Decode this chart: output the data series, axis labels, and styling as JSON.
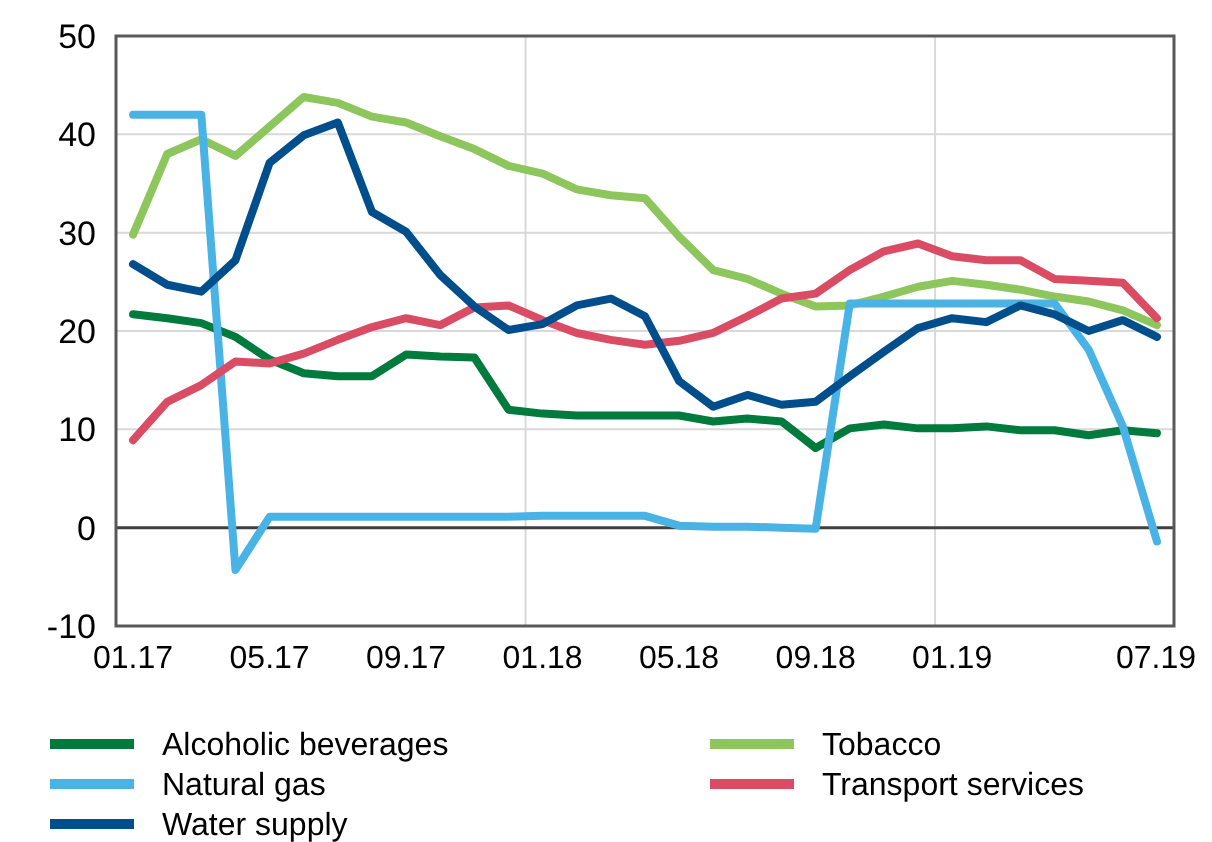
{
  "chart_data": {
    "type": "line",
    "categories": [
      "01.17",
      null,
      null,
      null,
      "05.17",
      null,
      null,
      null,
      "09.17",
      null,
      null,
      null,
      "01.18",
      null,
      null,
      null,
      "05.18",
      null,
      null,
      null,
      "09.18",
      null,
      null,
      null,
      "01.19",
      null,
      null,
      null,
      null,
      null,
      "07.19"
    ],
    "series": [
      {
        "name": "Alcoholic beverages",
        "color": "#007a3d",
        "values": [
          21.7,
          21.3,
          20.8,
          19.4,
          17.1,
          15.7,
          15.4,
          15.4,
          17.6,
          17.4,
          17.3,
          12,
          11.6,
          11.4,
          11.4,
          11.4,
          11.4,
          10.8,
          11.1,
          10.8,
          8.1,
          10.1,
          10.5,
          10.1,
          10.1,
          10.3,
          9.9,
          9.9,
          9.4,
          9.9,
          9.6
        ]
      },
      {
        "name": "Tobacco",
        "color": "#8cc65c",
        "values": [
          29.8,
          38,
          39.5,
          37.8,
          40.8,
          43.8,
          43.2,
          41.8,
          41.2,
          39.8,
          38.5,
          36.8,
          36,
          34.4,
          33.8,
          33.5,
          29.6,
          26.2,
          25.3,
          23.8,
          22.5,
          22.6,
          23.5,
          24.5,
          25.1,
          24.7,
          24.2,
          23.5,
          23,
          22.1,
          20.6
        ]
      },
      {
        "name": "Natural gas",
        "color": "#4ab3e6",
        "values": [
          42,
          42,
          42,
          -4.3,
          1.1,
          1.1,
          1.1,
          1.1,
          1.1,
          1.1,
          1.1,
          1.1,
          1.2,
          1.2,
          1.2,
          1.2,
          0.2,
          0.1,
          0.1,
          0,
          -0.1,
          22.8,
          22.8,
          22.8,
          22.8,
          22.8,
          22.8,
          22.8,
          18.1,
          10.3,
          -1.4
        ]
      },
      {
        "name": "Transport services",
        "color": "#d94c63",
        "values": [
          8.9,
          12.8,
          14.5,
          16.9,
          16.7,
          17.7,
          19.1,
          20.4,
          21.3,
          20.6,
          22.4,
          22.6,
          21.1,
          19.8,
          19.1,
          18.6,
          19,
          19.8,
          21.5,
          23.3,
          23.8,
          26.2,
          28.1,
          28.9,
          27.6,
          27.2,
          27.2,
          25.3,
          25.1,
          24.9,
          21.3
        ]
      },
      {
        "name": "Water supply",
        "color": "#004f8c",
        "values": [
          26.8,
          24.7,
          24,
          27.2,
          37.1,
          39.9,
          41.2,
          32.1,
          30.1,
          25.7,
          22.5,
          20.1,
          20.7,
          22.6,
          23.3,
          21.5,
          14.9,
          12.3,
          13.5,
          12.5,
          12.8,
          15.4,
          17.9,
          20.3,
          21.3,
          20.9,
          22.6,
          21.7,
          20,
          21.1,
          19.4
        ]
      }
    ],
    "ylim": [
      -10,
      50
    ],
    "yticks": [
      -10,
      0,
      10,
      20,
      30,
      40,
      50
    ],
    "grid": true,
    "legend": "bottom",
    "marker": "none",
    "line_style": "solid"
  }
}
